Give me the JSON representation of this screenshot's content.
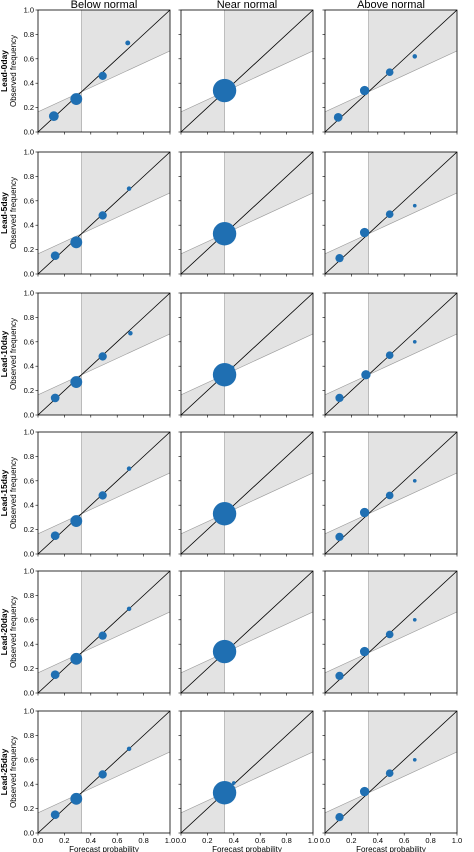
{
  "figure": {
    "column_titles": [
      "Below normal",
      "Near normal",
      "Above normal"
    ],
    "row_labels": [
      "Lead-0day",
      "Lead-5day",
      "Lead-10day",
      "Lead-15day",
      "Lead-20day",
      "Lead-25day"
    ],
    "ylabel": "Observed frequency",
    "xlabel": "Forecast probability",
    "ticks": [
      "0.0",
      "0.2",
      "0.4",
      "0.6",
      "0.8",
      "1.0"
    ],
    "colors": {
      "point": "#1f6fb2",
      "shade": "#e3e3e3",
      "diagonal": "#000000",
      "frame": "#000000"
    }
  },
  "chart_data": {
    "type": "scatter",
    "description_of_axes": {
      "xlim": [
        0,
        1
      ],
      "ylim": [
        0,
        1
      ],
      "grid": false
    },
    "columns": [
      {
        "category": "Below normal",
        "climatology": 0.33,
        "rows": [
          {
            "lead": "Lead-0day",
            "points": [
              {
                "x": 0.12,
                "y": 0.13,
                "size": 0.35
              },
              {
                "x": 0.29,
                "y": 0.27,
                "size": 0.45
              },
              {
                "x": 0.49,
                "y": 0.46,
                "size": 0.28
              },
              {
                "x": 0.68,
                "y": 0.73,
                "size": 0.12
              }
            ]
          },
          {
            "lead": "Lead-5day",
            "points": [
              {
                "x": 0.13,
                "y": 0.15,
                "size": 0.3
              },
              {
                "x": 0.29,
                "y": 0.26,
                "size": 0.45
              },
              {
                "x": 0.49,
                "y": 0.48,
                "size": 0.28
              },
              {
                "x": 0.69,
                "y": 0.7,
                "size": 0.1
              }
            ]
          },
          {
            "lead": "Lead-10day",
            "points": [
              {
                "x": 0.13,
                "y": 0.14,
                "size": 0.3
              },
              {
                "x": 0.29,
                "y": 0.27,
                "size": 0.45
              },
              {
                "x": 0.49,
                "y": 0.48,
                "size": 0.28
              },
              {
                "x": 0.7,
                "y": 0.67,
                "size": 0.1
              }
            ]
          },
          {
            "lead": "Lead-15day",
            "points": [
              {
                "x": 0.13,
                "y": 0.15,
                "size": 0.3
              },
              {
                "x": 0.29,
                "y": 0.27,
                "size": 0.45
              },
              {
                "x": 0.49,
                "y": 0.48,
                "size": 0.28
              },
              {
                "x": 0.69,
                "y": 0.7,
                "size": 0.1
              }
            ]
          },
          {
            "lead": "Lead-20day",
            "points": [
              {
                "x": 0.13,
                "y": 0.15,
                "size": 0.3
              },
              {
                "x": 0.29,
                "y": 0.28,
                "size": 0.45
              },
              {
                "x": 0.49,
                "y": 0.47,
                "size": 0.28
              },
              {
                "x": 0.69,
                "y": 0.69,
                "size": 0.1
              }
            ]
          },
          {
            "lead": "Lead-25day",
            "points": [
              {
                "x": 0.13,
                "y": 0.15,
                "size": 0.3
              },
              {
                "x": 0.29,
                "y": 0.28,
                "size": 0.45
              },
              {
                "x": 0.49,
                "y": 0.48,
                "size": 0.28
              },
              {
                "x": 0.69,
                "y": 0.69,
                "size": 0.1
              }
            ]
          }
        ]
      },
      {
        "category": "Near normal",
        "climatology": 0.33,
        "rows": [
          {
            "lead": "Lead-0day",
            "points": [
              {
                "x": 0.33,
                "y": 0.34,
                "size": 1.0
              },
              {
                "x": 0.39,
                "y": 0.39,
                "size": 0.06
              }
            ]
          },
          {
            "lead": "Lead-5day",
            "points": [
              {
                "x": 0.33,
                "y": 0.33,
                "size": 1.0
              }
            ]
          },
          {
            "lead": "Lead-10day",
            "points": [
              {
                "x": 0.33,
                "y": 0.33,
                "size": 1.0
              },
              {
                "x": 0.39,
                "y": 0.39,
                "size": 0.06
              }
            ]
          },
          {
            "lead": "Lead-15day",
            "points": [
              {
                "x": 0.33,
                "y": 0.33,
                "size": 1.0
              }
            ]
          },
          {
            "lead": "Lead-20day",
            "points": [
              {
                "x": 0.33,
                "y": 0.34,
                "size": 1.0
              },
              {
                "x": 0.39,
                "y": 0.39,
                "size": 0.06
              }
            ]
          },
          {
            "lead": "Lead-25day",
            "points": [
              {
                "x": 0.33,
                "y": 0.33,
                "size": 1.0
              },
              {
                "x": 0.4,
                "y": 0.41,
                "size": 0.06
              }
            ]
          }
        ]
      },
      {
        "category": "Above normal",
        "climatology": 0.33,
        "rows": [
          {
            "lead": "Lead-0day",
            "points": [
              {
                "x": 0.1,
                "y": 0.12,
                "size": 0.3
              },
              {
                "x": 0.3,
                "y": 0.34,
                "size": 0.33
              },
              {
                "x": 0.49,
                "y": 0.49,
                "size": 0.25
              },
              {
                "x": 0.68,
                "y": 0.62,
                "size": 0.1
              }
            ]
          },
          {
            "lead": "Lead-5day",
            "points": [
              {
                "x": 0.11,
                "y": 0.13,
                "size": 0.28
              },
              {
                "x": 0.3,
                "y": 0.34,
                "size": 0.33
              },
              {
                "x": 0.49,
                "y": 0.49,
                "size": 0.25
              },
              {
                "x": 0.68,
                "y": 0.56,
                "size": 0.06
              }
            ]
          },
          {
            "lead": "Lead-10day",
            "points": [
              {
                "x": 0.11,
                "y": 0.14,
                "size": 0.28
              },
              {
                "x": 0.31,
                "y": 0.33,
                "size": 0.33
              },
              {
                "x": 0.49,
                "y": 0.49,
                "size": 0.25
              },
              {
                "x": 0.68,
                "y": 0.6,
                "size": 0.06
              }
            ]
          },
          {
            "lead": "Lead-15day",
            "points": [
              {
                "x": 0.11,
                "y": 0.14,
                "size": 0.28
              },
              {
                "x": 0.3,
                "y": 0.34,
                "size": 0.33
              },
              {
                "x": 0.49,
                "y": 0.48,
                "size": 0.25
              },
              {
                "x": 0.68,
                "y": 0.6,
                "size": 0.06
              }
            ]
          },
          {
            "lead": "Lead-20day",
            "points": [
              {
                "x": 0.11,
                "y": 0.14,
                "size": 0.28
              },
              {
                "x": 0.3,
                "y": 0.34,
                "size": 0.33
              },
              {
                "x": 0.49,
                "y": 0.48,
                "size": 0.25
              },
              {
                "x": 0.68,
                "y": 0.6,
                "size": 0.06
              }
            ]
          },
          {
            "lead": "Lead-25day",
            "points": [
              {
                "x": 0.11,
                "y": 0.13,
                "size": 0.28
              },
              {
                "x": 0.3,
                "y": 0.34,
                "size": 0.33
              },
              {
                "x": 0.49,
                "y": 0.49,
                "size": 0.25
              },
              {
                "x": 0.68,
                "y": 0.6,
                "size": 0.06
              }
            ]
          }
        ]
      }
    ]
  }
}
